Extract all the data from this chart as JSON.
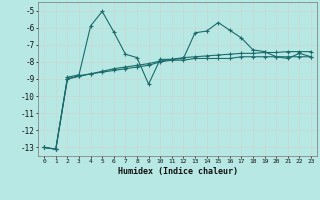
{
  "xlabel": "Humidex (Indice chaleur)",
  "bg_color": "#b8e8e4",
  "grid_color": "#c8d8d4",
  "line_color": "#1a6b6b",
  "xlim": [
    -0.5,
    23.5
  ],
  "ylim": [
    -13.5,
    -4.5
  ],
  "yticks": [
    -13,
    -12,
    -11,
    -10,
    -9,
    -8,
    -7,
    -6,
    -5
  ],
  "xticks": [
    0,
    1,
    2,
    3,
    4,
    5,
    6,
    7,
    8,
    9,
    10,
    11,
    12,
    13,
    14,
    15,
    16,
    17,
    18,
    19,
    20,
    21,
    22,
    23
  ],
  "line1_x": [
    0,
    1,
    2,
    3,
    4,
    5,
    6,
    7,
    8,
    9,
    10,
    11,
    12,
    13,
    14,
    15,
    16,
    17,
    18,
    19,
    20,
    21,
    22,
    23
  ],
  "line1_y": [
    -13.0,
    -13.1,
    -9.0,
    -8.85,
    -8.7,
    -8.55,
    -8.4,
    -8.3,
    -8.2,
    -8.1,
    -7.95,
    -7.85,
    -7.75,
    -7.7,
    -7.65,
    -7.6,
    -7.55,
    -7.5,
    -7.5,
    -7.45,
    -7.45,
    -7.4,
    -7.4,
    -7.4
  ],
  "line2_x": [
    0,
    1,
    2,
    3,
    4,
    5,
    6,
    7,
    8,
    9,
    10,
    11,
    12,
    13,
    14,
    15,
    16,
    17,
    18,
    19,
    20,
    21,
    22,
    23
  ],
  "line2_y": [
    -13.0,
    -13.1,
    -8.9,
    -8.75,
    -5.9,
    -5.05,
    -6.25,
    -7.55,
    -7.75,
    -9.3,
    -7.85,
    -7.85,
    -7.8,
    -6.3,
    -6.2,
    -5.7,
    -6.15,
    -6.6,
    -7.3,
    -7.4,
    -7.7,
    -7.8,
    -7.5,
    -7.7
  ],
  "line3_x": [
    0,
    1,
    2,
    3,
    4,
    5,
    6,
    7,
    8,
    9,
    10,
    11,
    12,
    13,
    14,
    15,
    16,
    17,
    18,
    19,
    20,
    21,
    22,
    23
  ],
  "line3_y": [
    -13.0,
    -13.1,
    -9.0,
    -8.8,
    -8.7,
    -8.6,
    -8.5,
    -8.4,
    -8.3,
    -8.2,
    -8.0,
    -7.9,
    -7.9,
    -7.8,
    -7.8,
    -7.8,
    -7.8,
    -7.7,
    -7.7,
    -7.7,
    -7.7,
    -7.7,
    -7.7,
    -7.7
  ]
}
